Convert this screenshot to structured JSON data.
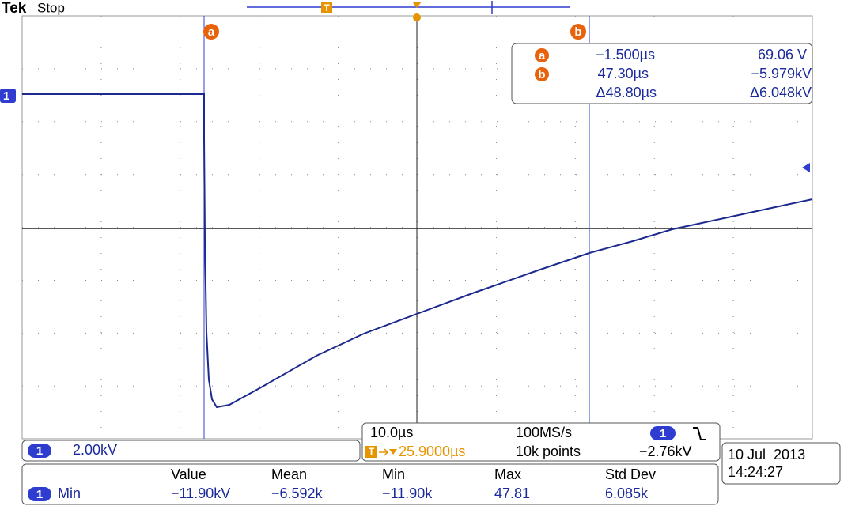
{
  "header": {
    "brand": "Tek",
    "status": "Stop"
  },
  "cursors": {
    "a": "a",
    "b": "b"
  },
  "cursor_readout": {
    "a": {
      "marker": "a",
      "time": "−1.500µs",
      "value": "69.06 V"
    },
    "b": {
      "marker": "b",
      "time": "47.30µs",
      "value": "−5.979kV"
    },
    "delta": {
      "time": "Δ48.80µs",
      "value": "Δ6.048kV"
    }
  },
  "channel": {
    "number": "1",
    "scale": "2.00kV"
  },
  "horizontal": {
    "scale": "10.0µs",
    "sample_rate": "100MS/s",
    "trigger_icon": "T",
    "trigger_position": "25.9000µs",
    "record_length": "10k points",
    "trigger_channel": "1",
    "trigger_level": "−2.76kV"
  },
  "timestamp": {
    "date": "10 Jul  2013",
    "time": "14:24:27"
  },
  "measurements": {
    "headers": [
      "Value",
      "Mean",
      "Min",
      "Max",
      "Std Dev"
    ],
    "rows": [
      {
        "channel": "1",
        "name": "Min",
        "values": [
          "−11.90kV",
          "−6.592k",
          "−11.90k",
          "47.81",
          "6.085k"
        ]
      }
    ]
  }
}
